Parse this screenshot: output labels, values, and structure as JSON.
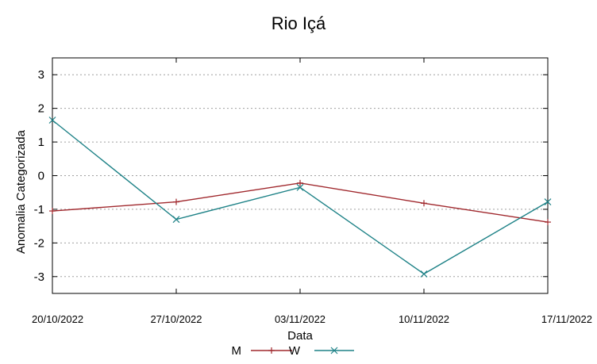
{
  "chart_data": {
    "type": "line",
    "title": "Rio Içá",
    "xlabel": "Data",
    "ylabel": "Anomalia Categorizada",
    "x": [
      "20/10/2022",
      "27/10/2022",
      "03/11/2022",
      "10/11/2022",
      "17/11/2022"
    ],
    "y_ticks": [
      "3",
      "2",
      "1",
      "0",
      "-1",
      "-2",
      "-3"
    ],
    "ylim": [
      -3.5,
      3.5
    ],
    "grid": true,
    "legend_placement": "bottom-center",
    "series": [
      {
        "name": "M",
        "color": "#a0282d",
        "marker": "plus",
        "values": [
          -1.05,
          -0.78,
          -0.22,
          -0.82,
          -1.38
        ]
      },
      {
        "name": "W",
        "color": "#1e8287",
        "marker": "cross",
        "values": [
          1.65,
          -1.3,
          -0.35,
          -2.92,
          -0.78
        ]
      }
    ]
  }
}
